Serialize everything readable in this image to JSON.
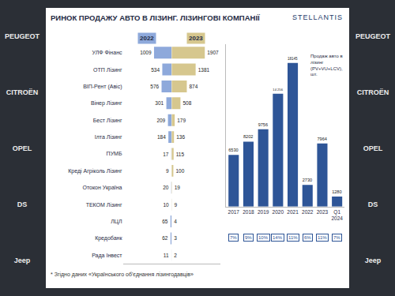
{
  "slide": {
    "title": "РИНОК ПРОДАЖУ АВТО В ЛІЗИНГ. ЛІЗИНГОВІ КОМПАНІЇ",
    "logo": "STELLANTIS",
    "footnote": "* Згідно даних «Українського об'єднання лізингодавців»",
    "brands_left": [
      "PEUGEOT",
      "CITROËN",
      "OPEL",
      "DS",
      "Jeep"
    ],
    "brands_right": [
      "PEUGEOT",
      "CITROËN",
      "OPEL",
      "DS",
      "Jeep"
    ]
  },
  "chart_data": [
    {
      "type": "bar",
      "orientation": "horizontal",
      "data_labels": true,
      "tick_labels": "y",
      "grid": false,
      "categories": [
        "УЛФ Фінанс",
        "ОТП Лізинг",
        "ВІП-Рент (Авіс)",
        "Вінер Лізинг",
        "Бест Лізинг",
        "Ілта Лізинг",
        "ПУМБ",
        "Креді Агріколь Лізинг",
        "Отокон Україна",
        "ТЕКОМ Лізинг",
        "ЛЦЛ",
        "Кредобанк",
        "Рада Інвест"
      ],
      "series": [
        {
          "name": "2022",
          "color": "#8ea9db",
          "values": [
            1009,
            534,
            576,
            301,
            209,
            184,
            17,
            9,
            20,
            10,
            65,
            62,
            11
          ]
        },
        {
          "name": "2023",
          "color": "#d6c78e",
          "values": [
            1907,
            1381,
            874,
            508,
            179,
            136,
            115,
            100,
            19,
            9,
            4,
            3,
            2
          ]
        }
      ],
      "xlim": [
        0,
        2800
      ],
      "xticks": []
    },
    {
      "type": "bar",
      "title": "Продаж авто в лізинг (PV+VU+LCV), шт.",
      "data_labels": true,
      "tick_labels": "x",
      "grid": false,
      "color": "#2e5597",
      "categories": [
        "2017",
        "2018",
        "2019",
        "2020",
        "2021",
        "2022",
        "2023",
        "Q1 2024"
      ],
      "values": [
        6530,
        8202,
        9756,
        14256,
        18145,
        2730,
        7964,
        1280
      ],
      "value_labels": [
        "6530",
        "8202",
        "9756",
        "14 256",
        "18145",
        "2730",
        "7964",
        "1280"
      ],
      "shares": [
        7,
        9,
        10,
        14,
        11,
        6,
        11,
        7
      ],
      "share_labels": [
        "7%",
        "9%",
        "10%",
        "14%",
        "11%",
        "6%",
        "11%",
        "7%"
      ],
      "ylim": [
        0,
        20500
      ],
      "yticks": []
    }
  ]
}
